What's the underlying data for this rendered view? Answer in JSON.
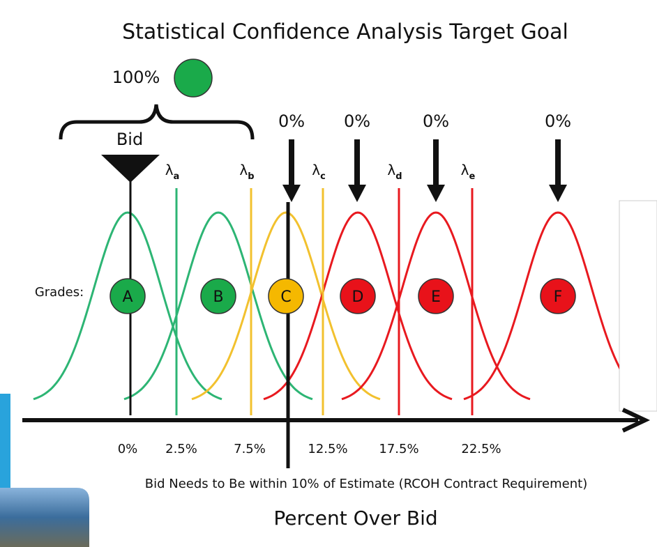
{
  "title": "Statistical Confidence Analysis Target Goal",
  "target": "100%",
  "bid_label": "Bid",
  "lambdas": [
    {
      "symbol": "λ",
      "subscript": "a"
    },
    {
      "symbol": "λ",
      "subscript": "b"
    },
    {
      "symbol": "λ",
      "subscript": "c"
    },
    {
      "symbol": "λ",
      "subscript": "d"
    },
    {
      "symbol": "λ",
      "subscript": "e"
    }
  ],
  "arrow_labels": [
    "0%",
    "0%",
    "0%",
    "0%"
  ],
  "grades_label": "Grades:",
  "grades": [
    "A",
    "B",
    "C",
    "D",
    "E",
    "F"
  ],
  "axis_ticks": [
    "0%",
    "2.5%",
    "7.5%",
    "12.5%",
    "17.5%",
    "22.5%"
  ],
  "note": "Bid Needs to Be within 10% of Estimate (RCOH Contract Requirement)",
  "axis_title": "Percent Over Bid"
}
